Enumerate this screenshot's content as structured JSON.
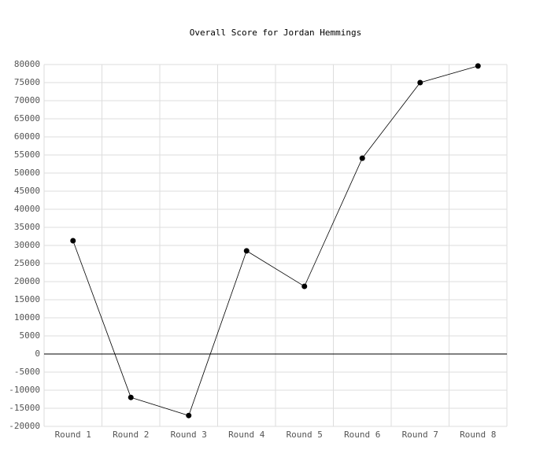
{
  "chart_data": {
    "type": "line",
    "title": "Overall Score for Jordan Hemmings",
    "categories": [
      "Round 1",
      "Round 2",
      "Round 3",
      "Round 4",
      "Round 5",
      "Round 6",
      "Round 7",
      "Round 8"
    ],
    "series": [
      {
        "name": "Overall Score",
        "color": "#000000",
        "values": [
          31300,
          -12000,
          -17000,
          28500,
          18700,
          54100,
          75000,
          79600
        ]
      }
    ],
    "ylim": [
      -20000,
      80000
    ],
    "yticks": [
      -20000,
      -15000,
      -10000,
      -5000,
      0,
      5000,
      10000,
      15000,
      20000,
      25000,
      30000,
      35000,
      40000,
      45000,
      50000,
      55000,
      60000,
      65000,
      70000,
      75000,
      80000
    ],
    "grid": true,
    "zero_line": true
  }
}
